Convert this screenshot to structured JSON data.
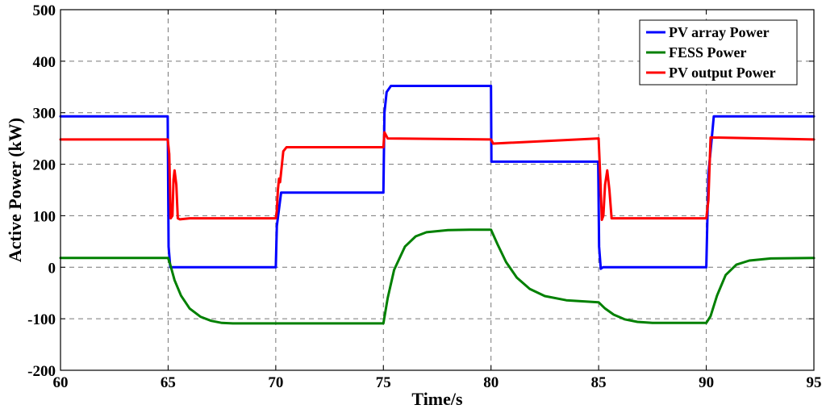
{
  "chart_data": {
    "type": "line",
    "title": "",
    "xlabel": "Time/s",
    "ylabel": "Active Power (kW)",
    "xlim": [
      60,
      95
    ],
    "ylim": [
      -200,
      500
    ],
    "xticks": [
      60,
      65,
      70,
      75,
      80,
      85,
      90,
      95
    ],
    "yticks": [
      -200,
      -100,
      0,
      100,
      200,
      300,
      400,
      500
    ],
    "grid": true,
    "legend_position": "top-right",
    "series": [
      {
        "name": "PV array Power",
        "color": "#0000ff",
        "x": [
          60,
          64.98,
          65.02,
          65.1,
          70.0,
          70.05,
          70.25,
          75.0,
          75.05,
          75.15,
          75.35,
          80.0,
          80.02,
          84.98,
          85.02,
          85.1,
          85.2,
          90.0,
          90.1,
          90.35,
          95
        ],
        "y": [
          293,
          293,
          40,
          0,
          0,
          80,
          145,
          145,
          300,
          340,
          352,
          352,
          205,
          205,
          40,
          -3,
          0,
          0,
          180,
          293,
          293
        ]
      },
      {
        "name": "FESS Power",
        "color": "#008000",
        "x": [
          60,
          65.0,
          65.1,
          65.3,
          65.6,
          66.0,
          66.5,
          67.0,
          67.5,
          68.0,
          75.0,
          75.2,
          75.5,
          76.0,
          76.5,
          77.0,
          78.0,
          79.0,
          80.0,
          80.3,
          80.7,
          81.2,
          81.8,
          82.5,
          83.5,
          85.0,
          85.3,
          85.7,
          86.2,
          86.8,
          87.5,
          90.0,
          90.2,
          90.5,
          90.9,
          91.4,
          92.0,
          93.0,
          95
        ],
        "y": [
          18,
          18,
          5,
          -25,
          -55,
          -80,
          -96,
          -104,
          -108,
          -109,
          -109,
          -60,
          -5,
          40,
          60,
          68,
          72,
          73,
          73,
          45,
          10,
          -20,
          -42,
          -56,
          -64,
          -68,
          -80,
          -92,
          -101,
          -106,
          -108,
          -108,
          -95,
          -55,
          -15,
          5,
          13,
          17,
          18
        ]
      },
      {
        "name": "PV output Power",
        "color": "#ff0000",
        "x": [
          60,
          64.98,
          65.05,
          65.12,
          65.2,
          65.25,
          65.3,
          65.38,
          65.45,
          65.55,
          66.0,
          70.0,
          70.05,
          70.1,
          70.15,
          70.2,
          70.35,
          70.5,
          75.0,
          75.05,
          75.2,
          80.0,
          80.1,
          85.0,
          85.08,
          85.15,
          85.22,
          85.3,
          85.4,
          85.5,
          85.6,
          86.0,
          90.0,
          90.1,
          90.2,
          95
        ],
        "y": [
          248,
          248,
          220,
          95,
          100,
          170,
          188,
          160,
          95,
          93,
          95,
          95,
          110,
          150,
          172,
          165,
          225,
          233,
          233,
          262,
          250,
          248,
          240,
          250,
          170,
          92,
          100,
          160,
          188,
          150,
          95,
          95,
          95,
          130,
          252,
          248
        ]
      }
    ]
  }
}
